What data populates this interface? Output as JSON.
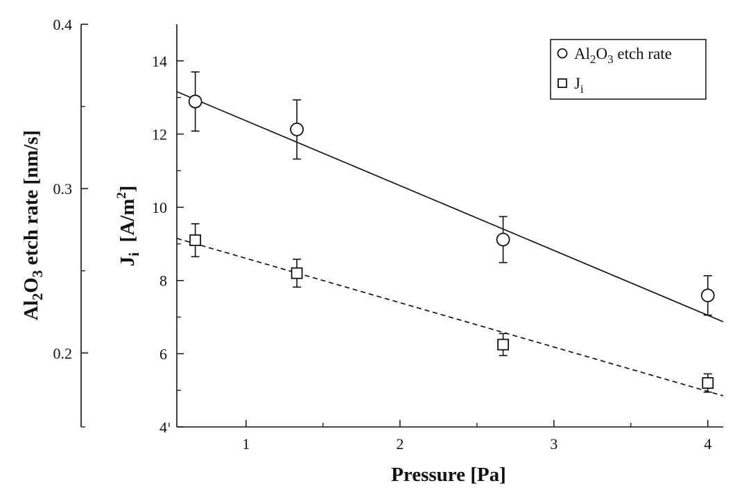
{
  "chart_data": {
    "type": "scatter",
    "x_axis": {
      "label": "Pressure [Pa]",
      "range": [
        0.55,
        4.1
      ],
      "ticks": [
        1,
        2,
        3,
        4
      ],
      "minor_ticks": [
        0.5,
        1.5,
        2.5,
        3.5
      ]
    },
    "y_axis_left": {
      "label_parts": [
        "Al",
        "2",
        "O",
        "3",
        " etch rate [nm/s]"
      ],
      "range": [
        0.155,
        0.4
      ],
      "ticks": [
        0.2,
        0.3,
        0.4
      ],
      "tick_labels": [
        "0.2",
        "0.3",
        "0.4"
      ],
      "minor_ticks": [
        0.25,
        0.35
      ]
    },
    "y_axis_right": {
      "label_parts": [
        "J",
        "i",
        "  [A/m",
        "2",
        "]"
      ],
      "range": [
        4,
        15
      ],
      "ticks": [
        4,
        6,
        8,
        10,
        12,
        14
      ],
      "minor_ticks": [
        5,
        7,
        9,
        11,
        13
      ]
    },
    "series": [
      {
        "name_parts": [
          "Al",
          "2",
          "O",
          "3",
          " etch rate"
        ],
        "axis": "left",
        "marker": "circle",
        "x": [
          0.67,
          1.33,
          2.67,
          4.0
        ],
        "y": [
          0.353,
          0.336,
          0.269,
          0.235
        ],
        "yerr": [
          0.018,
          0.018,
          0.014,
          0.012
        ],
        "fit": {
          "style": "solid",
          "x": [
            0.55,
            4.1
          ],
          "y": [
            0.359,
            0.219
          ]
        }
      },
      {
        "name_parts": [
          "J",
          "i"
        ],
        "axis": "right",
        "marker": "square",
        "x": [
          0.67,
          1.33,
          2.67,
          4.0
        ],
        "y": [
          9.1,
          8.2,
          6.25,
          5.2
        ],
        "yerr": [
          0.45,
          0.38,
          0.3,
          0.25
        ],
        "fit": {
          "style": "dashed",
          "x": [
            0.55,
            4.1
          ],
          "y": [
            9.15,
            4.85
          ]
        }
      }
    ],
    "legend": {
      "placement": "top-right"
    }
  },
  "colors": {
    "ink": "#111111",
    "background": "#ffffff"
  }
}
